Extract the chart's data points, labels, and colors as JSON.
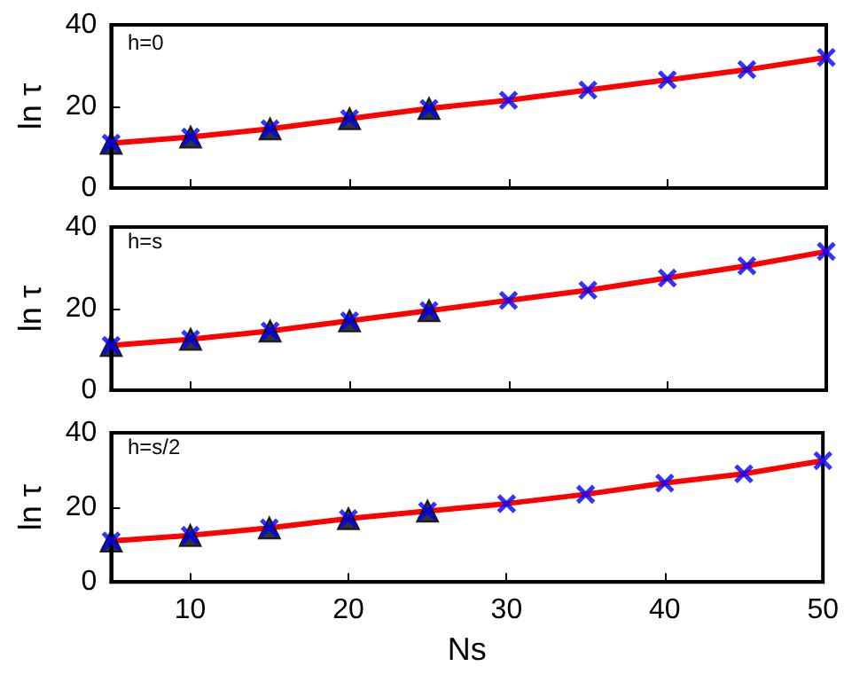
{
  "chart_data": [
    {
      "type": "line",
      "ylabel": "ln τ",
      "annotations": [
        "h=0"
      ],
      "xlim": [
        5,
        50
      ],
      "xticks": [
        10,
        20,
        30,
        40,
        50
      ],
      "ylim": [
        0,
        40
      ],
      "yticks": [
        0,
        20,
        40
      ],
      "tick_labels": "y",
      "grid": false,
      "series": [
        {
          "color": "#ff0000",
          "marker": "none",
          "line_style": "solid",
          "x": [
            5,
            10,
            15,
            20,
            25,
            30,
            35,
            40,
            45,
            50
          ],
          "values": [
            11,
            12.5,
            14.5,
            17,
            19.5,
            21.5,
            24,
            26.5,
            29,
            32
          ]
        },
        {
          "type": "scatter",
          "color": "#000000",
          "marker": "triangle",
          "x": [
            5,
            10,
            15,
            20,
            25
          ],
          "values": [
            11,
            12.5,
            14.5,
            17,
            19.5
          ]
        },
        {
          "type": "scatter",
          "color": "#0000ff",
          "marker": "cross",
          "x": [
            5,
            10,
            15,
            20,
            25,
            30,
            35,
            40,
            45,
            50
          ],
          "values": [
            11,
            12.5,
            14.5,
            17,
            19.5,
            21.5,
            24,
            26.5,
            29,
            32
          ]
        }
      ]
    },
    {
      "type": "line",
      "ylabel": "ln τ",
      "annotations": [
        "h=s"
      ],
      "xlim": [
        5,
        50
      ],
      "xticks": [
        10,
        20,
        30,
        40,
        50
      ],
      "ylim": [
        0,
        40
      ],
      "yticks": [
        0,
        20,
        40
      ],
      "tick_labels": "y",
      "grid": false,
      "series": [
        {
          "color": "#ff0000",
          "marker": "none",
          "line_style": "solid",
          "x": [
            5,
            10,
            15,
            20,
            25,
            30,
            35,
            40,
            45,
            50
          ],
          "values": [
            11,
            12.5,
            14.5,
            17,
            19.5,
            22,
            24.5,
            27.5,
            30.5,
            34
          ]
        },
        {
          "type": "scatter",
          "color": "#000000",
          "marker": "triangle",
          "x": [
            5,
            10,
            15,
            20,
            25
          ],
          "values": [
            11,
            12.5,
            14.5,
            17,
            19.5
          ]
        },
        {
          "type": "scatter",
          "color": "#0000ff",
          "marker": "cross",
          "x": [
            5,
            10,
            15,
            20,
            25,
            30,
            35,
            40,
            45,
            50
          ],
          "values": [
            11,
            12.5,
            14.5,
            17,
            19.5,
            22,
            24.5,
            27.5,
            30.5,
            34
          ]
        }
      ]
    },
    {
      "type": "line",
      "xlabel": "Ns",
      "ylabel": "ln τ",
      "annotations": [
        "h=s/2"
      ],
      "xlim": [
        5,
        50
      ],
      "xticks": [
        10,
        20,
        30,
        40,
        50
      ],
      "ylim": [
        0,
        40
      ],
      "yticks": [
        0,
        20,
        40
      ],
      "grid": false,
      "series": [
        {
          "color": "#ff0000",
          "marker": "none",
          "line_style": "solid",
          "x": [
            5,
            10,
            15,
            20,
            25,
            30,
            35,
            40,
            45,
            50
          ],
          "values": [
            11,
            12.5,
            14.5,
            17,
            19,
            21,
            23.5,
            26.5,
            29,
            32.5
          ]
        },
        {
          "type": "scatter",
          "color": "#000000",
          "marker": "triangle",
          "x": [
            5,
            10,
            15,
            20,
            25
          ],
          "values": [
            11,
            12.5,
            14.5,
            17,
            19
          ]
        },
        {
          "type": "scatter",
          "color": "#0000ff",
          "marker": "cross",
          "x": [
            5,
            10,
            15,
            20,
            25,
            30,
            35,
            40,
            45,
            50
          ],
          "values": [
            11,
            12.5,
            14.5,
            17,
            19,
            21,
            23.5,
            26.5,
            29,
            32.5
          ]
        }
      ]
    }
  ]
}
